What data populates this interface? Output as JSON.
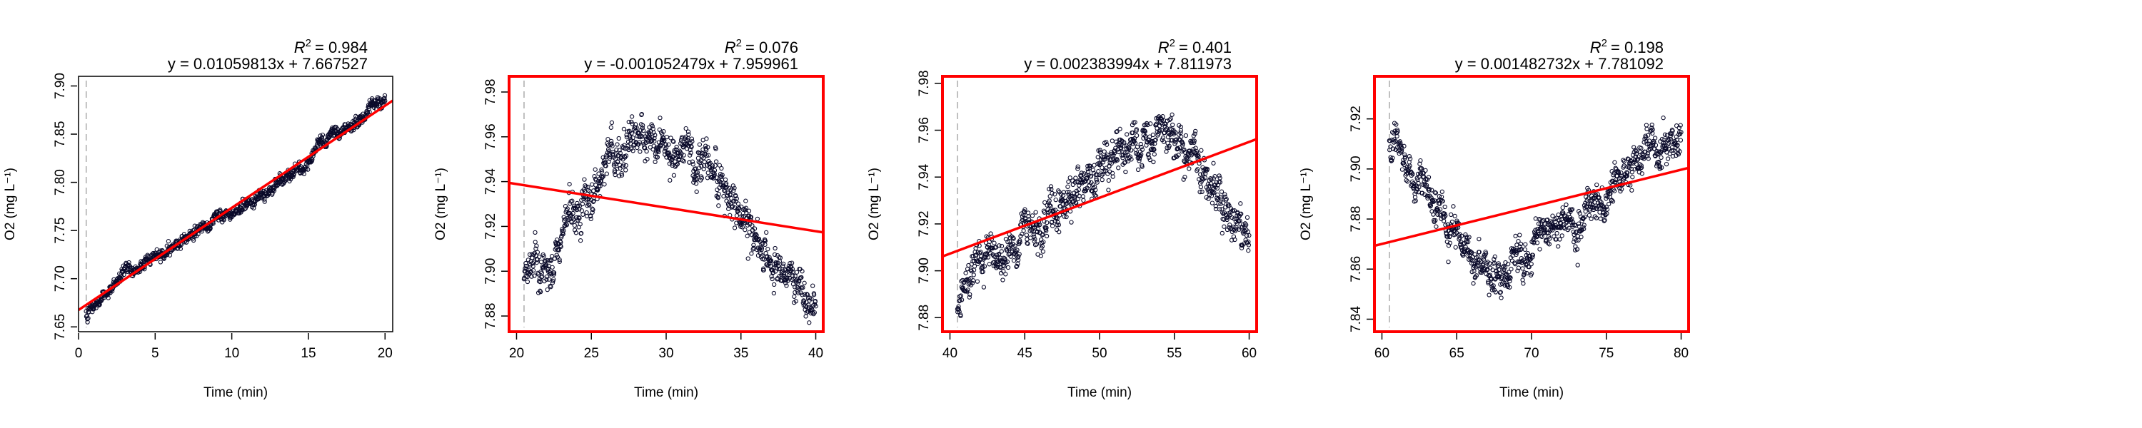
{
  "colors": {
    "fit_line": "#ff0000",
    "points": "#0a0a2a",
    "frame_highlight": "#ff0000",
    "marker_line": "#aaaaaa"
  },
  "chart_data": [
    {
      "type": "scatter",
      "xlabel": "Time (min)",
      "ylabel": "O2 (mg L⁻¹)",
      "r2_label": "R",
      "r2_value": "= 0.984",
      "equation": "y = 0.01059813x + 7.667527",
      "slope": 0.01059813,
      "intercept": 7.667527,
      "xlim": [
        0,
        20.5
      ],
      "ylim": [
        7.645,
        7.91
      ],
      "x_ticks": [
        0,
        5,
        10,
        15,
        20
      ],
      "x_tick_labels": [
        "0",
        "5",
        "10",
        "15",
        "20"
      ],
      "y_ticks": [
        7.65,
        7.7,
        7.75,
        7.8,
        7.85,
        7.9
      ],
      "y_tick_labels": [
        "7.65",
        "7.70",
        "7.75",
        "7.80",
        "7.85",
        "7.90"
      ],
      "marker_x": 0.5,
      "highlighted": false,
      "trend": [
        [
          0.5,
          7.662
        ],
        [
          3,
          7.703
        ],
        [
          6,
          7.733
        ],
        [
          9,
          7.764
        ],
        [
          12,
          7.786
        ],
        [
          14,
          7.806
        ],
        [
          16,
          7.84
        ],
        [
          18,
          7.861
        ],
        [
          20,
          7.889
        ]
      ],
      "noise": 0.0045,
      "n_points": 900
    },
    {
      "type": "scatter",
      "xlabel": "Time (min)",
      "ylabel": "O2 (mg L⁻¹)",
      "r2_label": "R",
      "r2_value": "= 0.076",
      "equation": "y = -0.001052479x + 7.959961",
      "slope": -0.001052479,
      "intercept": 7.959961,
      "xlim": [
        19.5,
        40.5
      ],
      "ylim": [
        7.873,
        7.987
      ],
      "x_ticks": [
        20,
        25,
        30,
        35,
        40
      ],
      "x_tick_labels": [
        "20",
        "25",
        "30",
        "35",
        "40"
      ],
      "y_ticks": [
        7.88,
        7.9,
        7.92,
        7.94,
        7.96,
        7.98
      ],
      "y_tick_labels": [
        "7.88",
        "7.90",
        "7.92",
        "7.94",
        "7.96",
        "7.98"
      ],
      "marker_x": 20.5,
      "highlighted": true,
      "trend": [
        [
          20.5,
          7.9
        ],
        [
          22,
          7.907
        ],
        [
          24,
          7.925
        ],
        [
          26,
          7.947
        ],
        [
          28,
          7.957
        ],
        [
          29.5,
          7.958
        ],
        [
          32,
          7.95
        ],
        [
          34,
          7.937
        ],
        [
          36,
          7.913
        ],
        [
          38,
          7.898
        ],
        [
          40,
          7.888
        ]
      ],
      "noise": 0.0065,
      "n_points": 900
    },
    {
      "type": "scatter",
      "xlabel": "Time (min)",
      "ylabel": "O2 (mg L⁻¹)",
      "r2_label": "R",
      "r2_value": "= 0.401",
      "equation": "y = 0.002383994x + 7.811973",
      "slope": 0.002383994,
      "intercept": 7.811973,
      "xlim": [
        39.5,
        60.5
      ],
      "ylim": [
        7.874,
        7.983
      ],
      "x_ticks": [
        40,
        45,
        50,
        55,
        60
      ],
      "x_tick_labels": [
        "40",
        "45",
        "50",
        "55",
        "60"
      ],
      "y_ticks": [
        7.88,
        7.9,
        7.92,
        7.94,
        7.96,
        7.98
      ],
      "y_tick_labels": [
        "7.88",
        "7.90",
        "7.92",
        "7.94",
        "7.96",
        "7.98"
      ],
      "marker_x": 40.5,
      "highlighted": true,
      "trend": [
        [
          40.5,
          7.885
        ],
        [
          41,
          7.887
        ],
        [
          42,
          7.9
        ],
        [
          44,
          7.911
        ],
        [
          46,
          7.923
        ],
        [
          48,
          7.932
        ],
        [
          50,
          7.944
        ],
        [
          52,
          7.954
        ],
        [
          54,
          7.96
        ],
        [
          55,
          7.958
        ],
        [
          57,
          7.945
        ],
        [
          58.5,
          7.93
        ],
        [
          60,
          7.915
        ]
      ],
      "noise": 0.0065,
      "n_points": 900
    },
    {
      "type": "scatter",
      "xlabel": "Time (min)",
      "ylabel": "O2 (mg L⁻¹)",
      "r2_label": "R",
      "r2_value": "= 0.198",
      "equation": "y = 0.001482732x + 7.781092",
      "slope": 0.001482732,
      "intercept": 7.781092,
      "xlim": [
        59.5,
        80.5
      ],
      "ylim": [
        7.835,
        7.937
      ],
      "x_ticks": [
        60,
        65,
        70,
        75,
        80
      ],
      "x_tick_labels": [
        "60",
        "65",
        "70",
        "75",
        "80"
      ],
      "y_ticks": [
        7.84,
        7.86,
        7.88,
        7.9,
        7.92
      ],
      "y_tick_labels": [
        "7.84",
        "7.86",
        "7.88",
        "7.90",
        "7.92"
      ],
      "marker_x": 60.5,
      "highlighted": true,
      "trend": [
        [
          60.5,
          7.91
        ],
        [
          61,
          7.908
        ],
        [
          62,
          7.9
        ],
        [
          63,
          7.89
        ],
        [
          65,
          7.875
        ],
        [
          67,
          7.857
        ],
        [
          68,
          7.86
        ],
        [
          70,
          7.87
        ],
        [
          72,
          7.876
        ],
        [
          74,
          7.882
        ],
        [
          75.5,
          7.9
        ],
        [
          77,
          7.905
        ],
        [
          79,
          7.91
        ],
        [
          80,
          7.912
        ]
      ],
      "noise": 0.0055,
      "n_points": 900
    }
  ]
}
